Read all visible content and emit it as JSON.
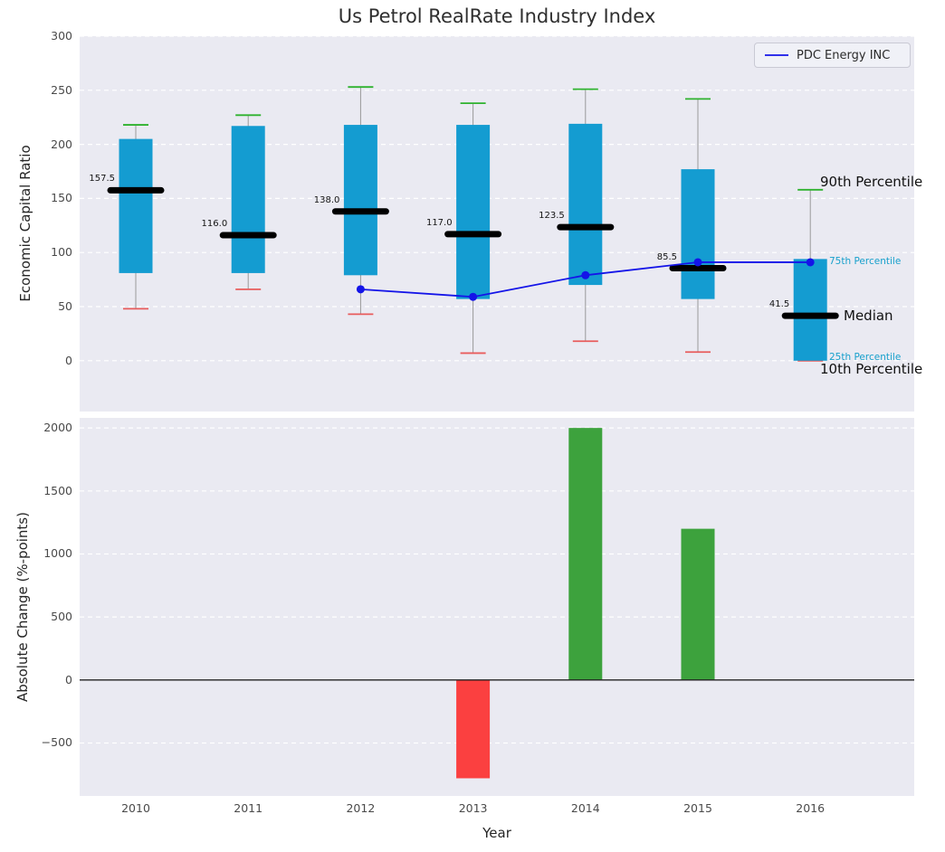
{
  "chart_data": [
    {
      "type": "boxplot",
      "title": "Us Petrol RealRate Industry Index",
      "ylabel": "Economic Capital Ratio",
      "ylim": [
        -47,
        300
      ],
      "yticks": [
        0,
        50,
        100,
        150,
        200,
        250,
        300
      ],
      "grid": true,
      "categories": [
        "2010",
        "2011",
        "2012",
        "2013",
        "2014",
        "2015",
        "2016"
      ],
      "series": {
        "p90": [
          218,
          227,
          253,
          238,
          251,
          242,
          158
        ],
        "p75": [
          205,
          217,
          218,
          218,
          219,
          177,
          94
        ],
        "median": [
          157.5,
          116.0,
          138.0,
          117.0,
          123.5,
          85.5,
          41.5
        ],
        "p25": [
          81,
          81,
          79,
          57,
          70,
          57,
          0
        ],
        "p10": [
          48,
          66,
          43,
          7,
          18,
          8,
          0
        ]
      },
      "median_labels": [
        "157.5",
        "116.0",
        "138.0",
        "117.0",
        "123.5",
        "85.5",
        "41.5"
      ],
      "overlay_line": {
        "name": "PDC Energy INC",
        "color": "#1414e8",
        "categories": [
          "2012",
          "2013",
          "2014",
          "2015",
          "2016"
        ],
        "values": [
          66,
          59,
          79,
          91,
          91
        ]
      },
      "legend": {
        "position": "upper right",
        "entries": [
          "PDC Energy INC"
        ]
      },
      "annotations": [
        {
          "label": "90th Percentile",
          "value": 165,
          "color": "#111111",
          "size": "large"
        },
        {
          "label": "75th Percentile",
          "value": 92,
          "color": "#17a0cc",
          "size": "small"
        },
        {
          "label": "Median",
          "value": 41.5,
          "color": "#111111",
          "size": "large"
        },
        {
          "label": "25th Percentile",
          "value": 3,
          "color": "#17a0cc",
          "size": "small"
        },
        {
          "label": "10th Percentile",
          "value": -8,
          "color": "#111111",
          "size": "large"
        }
      ],
      "colors": {
        "box": "#149cd1",
        "median": "#000000",
        "p90_cap": "#2eb22e",
        "p10_cap": "#e85c5c",
        "whisker": "#999999"
      }
    },
    {
      "type": "bar",
      "ylabel": "Absolute Change (%-points)",
      "xlabel": "Year",
      "ylim": [
        -920,
        2080
      ],
      "yticks": [
        -500,
        0,
        500,
        1000,
        1500,
        2000
      ],
      "grid": true,
      "zero_line": true,
      "categories": [
        "2010",
        "2011",
        "2012",
        "2013",
        "2014",
        "2015",
        "2016"
      ],
      "values": [
        null,
        null,
        null,
        -780,
        2000,
        1200,
        null
      ],
      "colors": {
        "positive": "#3da23d",
        "negative": "#fb4040"
      }
    }
  ]
}
